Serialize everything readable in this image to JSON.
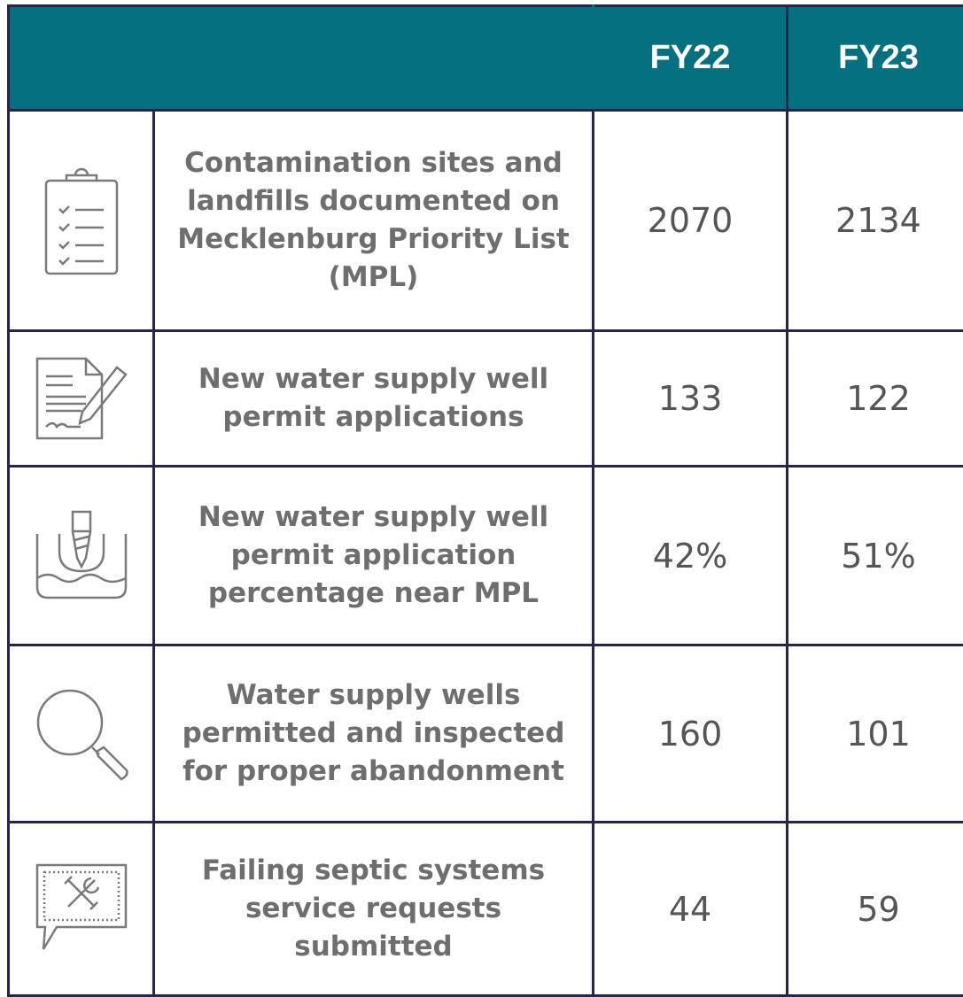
{
  "table": {
    "columns": [
      "FY22",
      "FY23"
    ],
    "rows": [
      [
        "Contamination sites and landfills documented on Mecklenburg Priority List (MPL)",
        "2070",
        "2134"
      ],
      [
        "New water supply well permit applications",
        "133",
        "122"
      ],
      [
        "New water supply well permit application percentage near MPL",
        "42%",
        "51%"
      ],
      [
        "Water supply wells permitted and inspected for proper abandonment",
        "160",
        "101"
      ],
      [
        "Failing septic systems service requests submitted",
        "44",
        "59"
      ]
    ]
  }
}
